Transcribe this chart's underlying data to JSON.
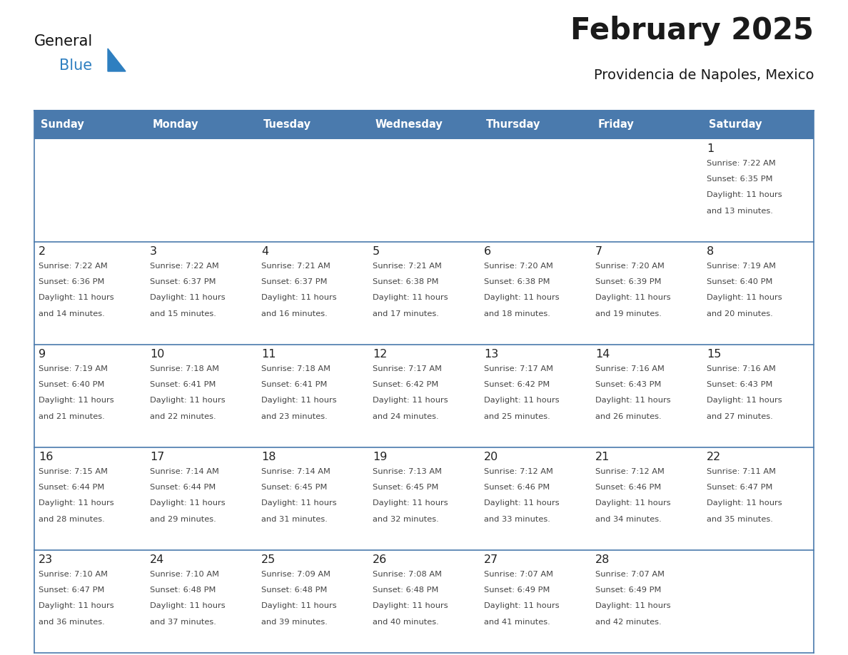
{
  "title": "February 2025",
  "subtitle": "Providencia de Napoles, Mexico",
  "header_bg_color": "#4a7aad",
  "header_text_color": "#ffffff",
  "grid_line_color": "#4a7aad",
  "text_color": "#444444",
  "day_number_color": "#222222",
  "days_of_week": [
    "Sunday",
    "Monday",
    "Tuesday",
    "Wednesday",
    "Thursday",
    "Friday",
    "Saturday"
  ],
  "general_color": "#1a1a1a",
  "blue_color": "#2e7fc0",
  "logo_general_color": "#111111",
  "calendar": [
    [
      null,
      null,
      null,
      null,
      null,
      null,
      {
        "day": 1,
        "sunrise": "7:22 AM",
        "sunset": "6:35 PM",
        "daylight": "11 hours",
        "daylight2": "and 13 minutes."
      }
    ],
    [
      {
        "day": 2,
        "sunrise": "7:22 AM",
        "sunset": "6:36 PM",
        "daylight": "11 hours",
        "daylight2": "and 14 minutes."
      },
      {
        "day": 3,
        "sunrise": "7:22 AM",
        "sunset": "6:37 PM",
        "daylight": "11 hours",
        "daylight2": "and 15 minutes."
      },
      {
        "day": 4,
        "sunrise": "7:21 AM",
        "sunset": "6:37 PM",
        "daylight": "11 hours",
        "daylight2": "and 16 minutes."
      },
      {
        "day": 5,
        "sunrise": "7:21 AM",
        "sunset": "6:38 PM",
        "daylight": "11 hours",
        "daylight2": "and 17 minutes."
      },
      {
        "day": 6,
        "sunrise": "7:20 AM",
        "sunset": "6:38 PM",
        "daylight": "11 hours",
        "daylight2": "and 18 minutes."
      },
      {
        "day": 7,
        "sunrise": "7:20 AM",
        "sunset": "6:39 PM",
        "daylight": "11 hours",
        "daylight2": "and 19 minutes."
      },
      {
        "day": 8,
        "sunrise": "7:19 AM",
        "sunset": "6:40 PM",
        "daylight": "11 hours",
        "daylight2": "and 20 minutes."
      }
    ],
    [
      {
        "day": 9,
        "sunrise": "7:19 AM",
        "sunset": "6:40 PM",
        "daylight": "11 hours",
        "daylight2": "and 21 minutes."
      },
      {
        "day": 10,
        "sunrise": "7:18 AM",
        "sunset": "6:41 PM",
        "daylight": "11 hours",
        "daylight2": "and 22 minutes."
      },
      {
        "day": 11,
        "sunrise": "7:18 AM",
        "sunset": "6:41 PM",
        "daylight": "11 hours",
        "daylight2": "and 23 minutes."
      },
      {
        "day": 12,
        "sunrise": "7:17 AM",
        "sunset": "6:42 PM",
        "daylight": "11 hours",
        "daylight2": "and 24 minutes."
      },
      {
        "day": 13,
        "sunrise": "7:17 AM",
        "sunset": "6:42 PM",
        "daylight": "11 hours",
        "daylight2": "and 25 minutes."
      },
      {
        "day": 14,
        "sunrise": "7:16 AM",
        "sunset": "6:43 PM",
        "daylight": "11 hours",
        "daylight2": "and 26 minutes."
      },
      {
        "day": 15,
        "sunrise": "7:16 AM",
        "sunset": "6:43 PM",
        "daylight": "11 hours",
        "daylight2": "and 27 minutes."
      }
    ],
    [
      {
        "day": 16,
        "sunrise": "7:15 AM",
        "sunset": "6:44 PM",
        "daylight": "11 hours",
        "daylight2": "and 28 minutes."
      },
      {
        "day": 17,
        "sunrise": "7:14 AM",
        "sunset": "6:44 PM",
        "daylight": "11 hours",
        "daylight2": "and 29 minutes."
      },
      {
        "day": 18,
        "sunrise": "7:14 AM",
        "sunset": "6:45 PM",
        "daylight": "11 hours",
        "daylight2": "and 31 minutes."
      },
      {
        "day": 19,
        "sunrise": "7:13 AM",
        "sunset": "6:45 PM",
        "daylight": "11 hours",
        "daylight2": "and 32 minutes."
      },
      {
        "day": 20,
        "sunrise": "7:12 AM",
        "sunset": "6:46 PM",
        "daylight": "11 hours",
        "daylight2": "and 33 minutes."
      },
      {
        "day": 21,
        "sunrise": "7:12 AM",
        "sunset": "6:46 PM",
        "daylight": "11 hours",
        "daylight2": "and 34 minutes."
      },
      {
        "day": 22,
        "sunrise": "7:11 AM",
        "sunset": "6:47 PM",
        "daylight": "11 hours",
        "daylight2": "and 35 minutes."
      }
    ],
    [
      {
        "day": 23,
        "sunrise": "7:10 AM",
        "sunset": "6:47 PM",
        "daylight": "11 hours",
        "daylight2": "and 36 minutes."
      },
      {
        "day": 24,
        "sunrise": "7:10 AM",
        "sunset": "6:48 PM",
        "daylight": "11 hours",
        "daylight2": "and 37 minutes."
      },
      {
        "day": 25,
        "sunrise": "7:09 AM",
        "sunset": "6:48 PM",
        "daylight": "11 hours",
        "daylight2": "and 39 minutes."
      },
      {
        "day": 26,
        "sunrise": "7:08 AM",
        "sunset": "6:48 PM",
        "daylight": "11 hours",
        "daylight2": "and 40 minutes."
      },
      {
        "day": 27,
        "sunrise": "7:07 AM",
        "sunset": "6:49 PM",
        "daylight": "11 hours",
        "daylight2": "and 41 minutes."
      },
      {
        "day": 28,
        "sunrise": "7:07 AM",
        "sunset": "6:49 PM",
        "daylight": "11 hours",
        "daylight2": "and 42 minutes."
      },
      null
    ]
  ],
  "fig_width": 11.88,
  "fig_height": 9.18
}
